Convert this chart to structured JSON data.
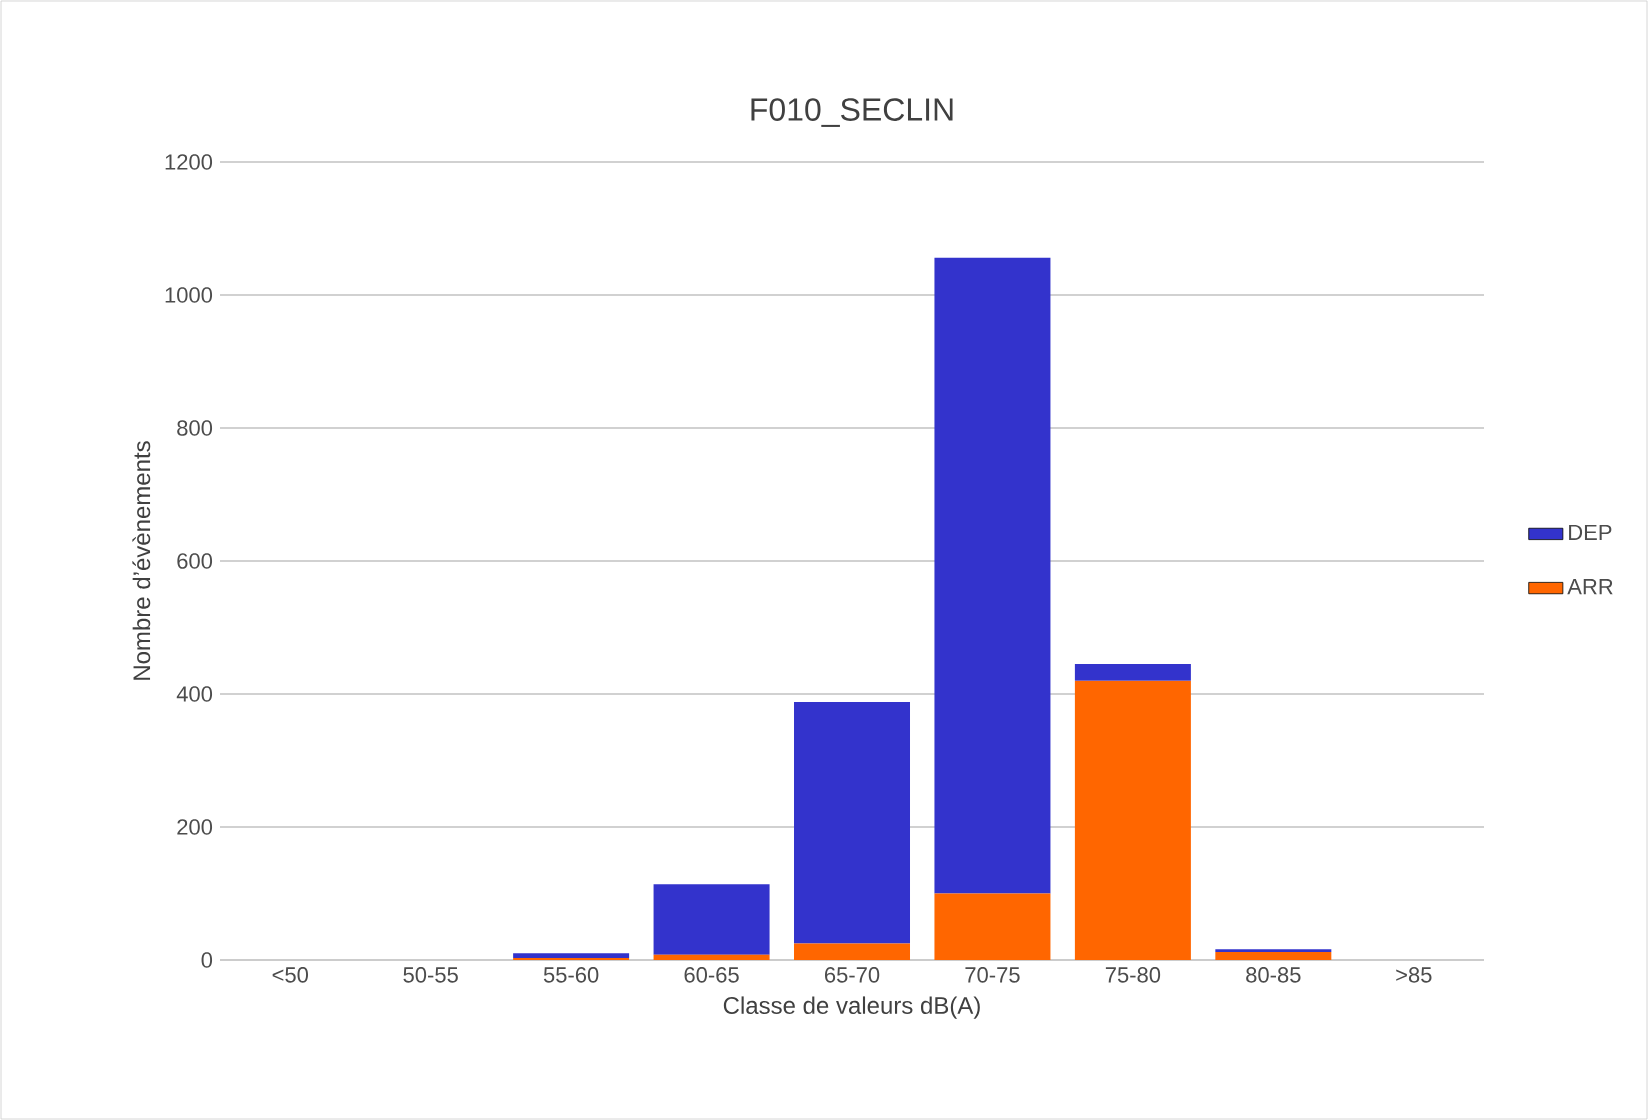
{
  "chart_data": {
    "type": "bar",
    "stacked": true,
    "title": "F010_SECLIN",
    "xlabel": "Classe de valeurs dB(A)",
    "ylabel": "Nombre d’évènements",
    "categories": [
      "<50",
      "50-55",
      "55-60",
      "60-65",
      "65-70",
      "70-75",
      "75-80",
      "80-85",
      ">85"
    ],
    "series": [
      {
        "name": "ARR",
        "color": "#ff6600",
        "values": [
          0,
          0,
          3,
          8,
          25,
          100,
          420,
          12,
          0
        ]
      },
      {
        "name": "DEP",
        "color": "#3333cc",
        "values": [
          0,
          0,
          7,
          106,
          363,
          956,
          25,
          4,
          0
        ]
      }
    ],
    "ylim": [
      0,
      1200
    ],
    "yticks": [
      0,
      200,
      400,
      600,
      800,
      1000,
      1200
    ],
    "grid": "y",
    "legend": "right"
  }
}
